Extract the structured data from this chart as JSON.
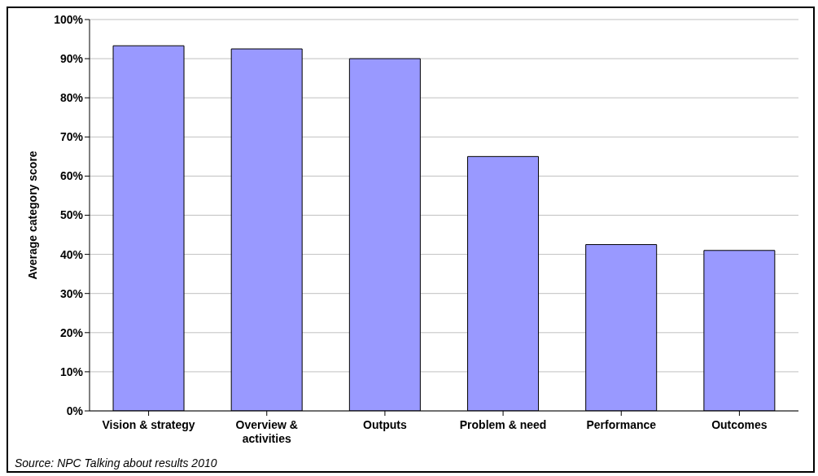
{
  "chart_data": {
    "type": "bar",
    "categories": [
      "Vision & strategy",
      "Overview & activities",
      "Outputs",
      "Problem & need",
      "Performance",
      "Outcomes"
    ],
    "values": [
      93.3,
      92.5,
      90,
      65,
      42.5,
      41
    ],
    "color": "#9999ff",
    "ylabel": "Average category score",
    "ylim": [
      0,
      100
    ],
    "yticks": [
      {
        "value": 0,
        "label": "0%"
      },
      {
        "value": 10,
        "label": "10%"
      },
      {
        "value": 20,
        "label": "20%"
      },
      {
        "value": 30,
        "label": "30%"
      },
      {
        "value": 40,
        "label": "40%"
      },
      {
        "value": 50,
        "label": "50%"
      },
      {
        "value": 60,
        "label": "60%"
      },
      {
        "value": 70,
        "label": "70%"
      },
      {
        "value": 80,
        "label": "80%"
      },
      {
        "value": 90,
        "label": "90%"
      },
      {
        "value": 100,
        "label": "100%"
      }
    ],
    "grid": "y",
    "annotations": [
      "Source: NPC Talking about results 2010"
    ]
  }
}
